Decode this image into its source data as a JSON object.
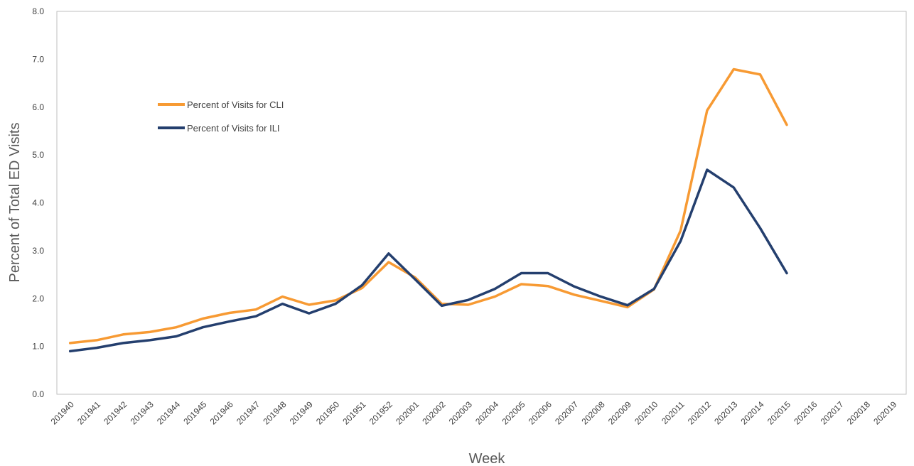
{
  "chart_data": {
    "type": "line",
    "xlabel": "Week",
    "ylabel": "Percent of Total ED Visits",
    "ylim": [
      0,
      8
    ],
    "yticks": [
      "0.0",
      "1.0",
      "2.0",
      "3.0",
      "4.0",
      "5.0",
      "6.0",
      "7.0",
      "8.0"
    ],
    "grid": false,
    "legend_position": "upper-left",
    "categories": [
      "201940",
      "201941",
      "201942",
      "201943",
      "201944",
      "201945",
      "201946",
      "201947",
      "201948",
      "201949",
      "201950",
      "201951",
      "201952",
      "202001",
      "202002",
      "202003",
      "202004",
      "202005",
      "202006",
      "202007",
      "202008",
      "202009",
      "202010",
      "202011",
      "202012",
      "202013",
      "202014",
      "202015",
      "202016",
      "202017",
      "202018",
      "202019"
    ],
    "series": [
      {
        "name": "Percent of Visits for CLI",
        "color": "#F79A33",
        "values": [
          1.07,
          1.13,
          1.25,
          1.3,
          1.4,
          1.58,
          1.7,
          1.77,
          2.04,
          1.87,
          1.96,
          2.22,
          2.76,
          2.44,
          1.89,
          1.87,
          2.04,
          2.3,
          2.26,
          2.08,
          1.95,
          1.82,
          2.19,
          3.42,
          5.93,
          6.79,
          6.68,
          5.63,
          null,
          null,
          null,
          null
        ]
      },
      {
        "name": "Percent of Visits for ILI",
        "color": "#243F6E",
        "values": [
          0.9,
          0.97,
          1.07,
          1.13,
          1.21,
          1.4,
          1.52,
          1.63,
          1.89,
          1.69,
          1.89,
          2.28,
          2.94,
          2.4,
          1.85,
          1.97,
          2.2,
          2.53,
          2.53,
          2.25,
          2.04,
          1.86,
          2.2,
          3.2,
          4.69,
          4.32,
          3.47,
          2.53,
          null,
          null,
          null,
          null
        ]
      }
    ]
  }
}
